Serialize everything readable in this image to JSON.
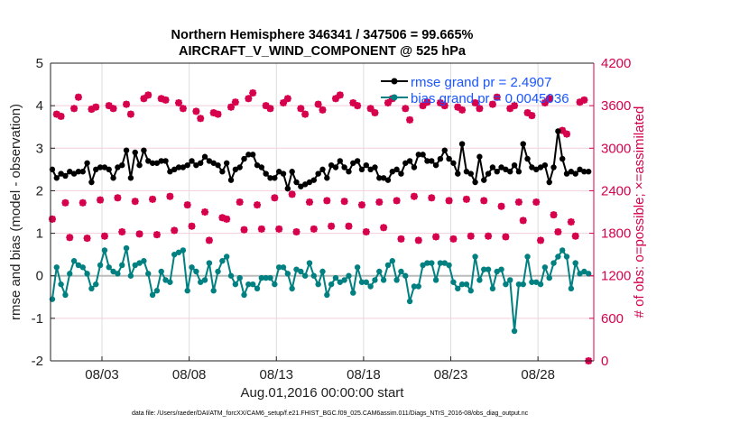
{
  "chart_data": {
    "type": "line",
    "title": [
      "Northern Hemisphere 346341 / 347506 = 99.665%",
      "AIRCRAFT_V_WIND_COMPONENT @ 525 hPa"
    ],
    "xlabel": "Aug.01,2016 00:00:00 start",
    "ylabel": "rmse and bias (model - observation)",
    "y2label": "# of obs: o=possible; ×=assimilated",
    "footer": "data file: /Users/raeder/DAI/ATM_forcXX/CAM6_setup/f.e21.FHIST_BGC.f09_025.CAM6assim.011/Diags_NTrS_2016-08/obs_diag_output.nc",
    "x_units": "days since Aug 01 2016 00:00",
    "xlim": [
      -0.95,
      30.2
    ],
    "ylim": [
      -2,
      5
    ],
    "y2lim": [
      0,
      4200
    ],
    "grid": true,
    "legend_position": "top-right",
    "x_ticks": [
      {
        "value": 2,
        "label": "08/03"
      },
      {
        "value": 7,
        "label": "08/08"
      },
      {
        "value": 12,
        "label": "08/13"
      },
      {
        "value": 17,
        "label": "08/18"
      },
      {
        "value": 22,
        "label": "08/23"
      },
      {
        "value": 27,
        "label": "08/28"
      }
    ],
    "y_ticks": [
      {
        "value": -2,
        "label": "-2"
      },
      {
        "value": -1,
        "label": "-1"
      },
      {
        "value": 0,
        "label": "0"
      },
      {
        "value": 1,
        "label": "1"
      },
      {
        "value": 2,
        "label": "2"
      },
      {
        "value": 3,
        "label": "3"
      },
      {
        "value": 4,
        "label": "4"
      },
      {
        "value": 5,
        "label": "5"
      }
    ],
    "y2_ticks": [
      {
        "value": 0,
        "label": "0"
      },
      {
        "value": 600,
        "label": "600"
      },
      {
        "value": 1200,
        "label": "1200"
      },
      {
        "value": 1800,
        "label": "1800"
      },
      {
        "value": 2400,
        "label": "2400"
      },
      {
        "value": 3000,
        "label": "3000"
      },
      {
        "value": 3600,
        "label": "3600"
      },
      {
        "value": 4200,
        "label": "4200"
      }
    ],
    "x_start": -0.85,
    "x_step": 0.25,
    "series": [
      {
        "name": "rmse grand pr = 2.4907",
        "color": "#000000",
        "axis": "left",
        "values": [
          2.5,
          2.3,
          2.4,
          2.35,
          2.45,
          2.4,
          2.45,
          2.45,
          2.65,
          2.2,
          2.5,
          2.55,
          2.55,
          2.5,
          2.3,
          2.55,
          2.6,
          2.95,
          2.3,
          2.9,
          2.6,
          2.95,
          2.7,
          2.65,
          2.65,
          2.7,
          2.7,
          2.45,
          2.5,
          2.55,
          2.55,
          2.6,
          2.7,
          2.6,
          2.65,
          2.8,
          2.7,
          2.65,
          2.6,
          2.45,
          2.65,
          2.25,
          2.5,
          2.55,
          2.75,
          2.85,
          2.85,
          2.6,
          2.55,
          2.4,
          2.3,
          2.3,
          2.45,
          2.4,
          2.05,
          2.45,
          2.2,
          2.1,
          2.15,
          2.2,
          2.25,
          2.4,
          2.5,
          2.3,
          2.6,
          2.55,
          2.7,
          2.55,
          2.45,
          2.65,
          2.7,
          2.5,
          2.6,
          2.5,
          2.55,
          2.3,
          2.3,
          2.25,
          2.45,
          2.5,
          2.4,
          2.65,
          2.7,
          2.55,
          2.85,
          2.85,
          2.7,
          2.7,
          2.6,
          2.75,
          2.95,
          2.75,
          2.65,
          2.4,
          3.1,
          2.45,
          2.4,
          2.2,
          2.8,
          2.25,
          2.4,
          2.55,
          2.45,
          2.55,
          2.5,
          2.45,
          2.6,
          2.45,
          3.1,
          2.75,
          2.55,
          2.5,
          2.55,
          2.6,
          2.2,
          2.55,
          3.4,
          2.75,
          2.4,
          2.45,
          2.4,
          2.5,
          2.45,
          2.45
        ]
      },
      {
        "name": "bias grand pr = 0.0045036",
        "color": "#008080",
        "axis": "left",
        "values": [
          -0.55,
          0.2,
          -0.2,
          -0.45,
          0.05,
          0.35,
          0.25,
          0.2,
          0.05,
          -0.3,
          -0.2,
          0.25,
          0.6,
          0.2,
          0.1,
          0.05,
          0.25,
          0.65,
          0.0,
          0.25,
          0.3,
          0.35,
          0.05,
          -0.45,
          -0.35,
          0.1,
          -0.1,
          -0.15,
          0.5,
          0.55,
          0.6,
          -0.35,
          0.2,
          0.1,
          -0.15,
          -0.1,
          0.3,
          -0.35,
          0.1,
          0.35,
          0.45,
          0.0,
          -0.2,
          -0.05,
          -0.45,
          -0.2,
          -0.2,
          -0.3,
          -0.05,
          -0.05,
          -0.05,
          -0.2,
          0.2,
          0.2,
          0.05,
          -0.3,
          0.15,
          0.1,
          0.0,
          0.3,
          0.0,
          -0.2,
          0.1,
          -0.45,
          -0.2,
          -0.05,
          -0.15,
          -0.1,
          0.0,
          -0.4,
          0.2,
          -0.15,
          -0.15,
          -0.25,
          -0.1,
          0.1,
          -0.1,
          0.25,
          0.35,
          -0.1,
          0.1,
          0.0,
          -0.6,
          -0.25,
          -0.25,
          0.25,
          0.3,
          0.3,
          -0.1,
          0.3,
          0.3,
          0.25,
          -0.15,
          -0.3,
          -0.2,
          -0.2,
          -0.35,
          0.45,
          -0.1,
          0.15,
          0.15,
          -0.3,
          0.1,
          0.15,
          -0.2,
          -0.1,
          -1.3,
          -0.2,
          -0.2,
          0.45,
          -0.15,
          -0.15,
          -0.2,
          0.2,
          -0.05,
          0.3,
          0.45,
          0.6,
          0.45,
          -0.3,
          0.3,
          0.05,
          0.1,
          0.05
        ]
      },
      {
        "name": "# of obs (possible / assimilated)",
        "color": "#d6004c",
        "axis": "right",
        "values": [
          2000,
          3480,
          3450,
          2230,
          1740,
          3560,
          3720,
          2230,
          1730,
          3550,
          3580,
          2270,
          1760,
          3600,
          3560,
          2300,
          1820,
          3620,
          3480,
          2250,
          1790,
          3700,
          3750,
          2280,
          1780,
          3700,
          3680,
          2320,
          1840,
          3640,
          3560,
          2200,
          1900,
          3520,
          3420,
          2100,
          1700,
          3500,
          3480,
          2020,
          2000,
          3580,
          3650,
          2240,
          1850,
          3700,
          3780,
          2200,
          1860,
          3600,
          3560,
          2300,
          1860,
          3640,
          3700,
          2350,
          1820,
          3560,
          3480,
          2240,
          1860,
          3620,
          3540,
          2260,
          1900,
          3700,
          3750,
          2250,
          1900,
          3640,
          3600,
          2200,
          1820,
          3560,
          3500,
          2240,
          1880,
          3640,
          3700,
          2260,
          1720,
          3560,
          3400,
          2320,
          1700,
          3600,
          3650,
          2300,
          1750,
          3640,
          3600,
          2260,
          1720,
          3580,
          3540,
          2280,
          1760,
          3640,
          3560,
          2260,
          1760,
          3620,
          3720,
          2180,
          1750,
          3560,
          3600,
          2240,
          1980,
          3500,
          3460,
          2240,
          1700,
          3640,
          3700,
          2060,
          1820,
          3250,
          3200,
          1960,
          1760,
          3650,
          3680,
          0
        ]
      }
    ]
  }
}
